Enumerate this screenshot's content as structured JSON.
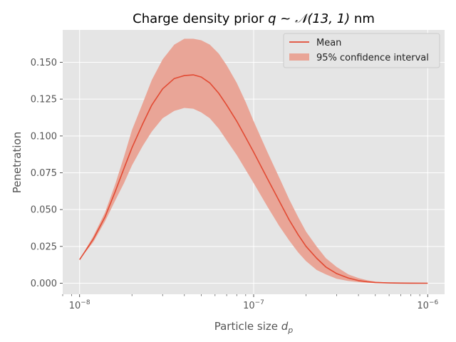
{
  "chart_data": {
    "type": "line",
    "title_prefix": "Charge density prior ",
    "title_math": "q ~ 𝒩(13, 1)",
    "title_suffix": " nm",
    "xlabel_text": "Particle size ",
    "xlabel_var": "d",
    "xlabel_sub": "p",
    "ylabel": "Penetration",
    "xscale": "log",
    "xlim": [
      8e-09,
      1.25e-06
    ],
    "ylim": [
      -0.0075,
      0.172
    ],
    "grid": true,
    "legend_position": "top-right",
    "x_ticks": [
      {
        "value": 1e-08,
        "mantissa": "10",
        "exp": "−8"
      },
      {
        "value": 1e-07,
        "mantissa": "10",
        "exp": "−7"
      },
      {
        "value": 1e-06,
        "mantissa": "10",
        "exp": "−6"
      }
    ],
    "y_ticks": [
      {
        "value": 0.0,
        "label": "0.000"
      },
      {
        "value": 0.025,
        "label": "0.025"
      },
      {
        "value": 0.05,
        "label": "0.050"
      },
      {
        "value": 0.075,
        "label": "0.075"
      },
      {
        "value": 0.1,
        "label": "0.100"
      },
      {
        "value": 0.125,
        "label": "0.125"
      },
      {
        "value": 0.15,
        "label": "0.150"
      }
    ],
    "x": [
      1e-08,
      1.2e-08,
      1.4e-08,
      1.6e-08,
      1.8e-08,
      2e-08,
      2.3e-08,
      2.6e-08,
      3e-08,
      3.5e-08,
      4e-08,
      4.5e-08,
      5e-08,
      5.6e-08,
      6.3e-08,
      7e-08,
      8e-08,
      9e-08,
      1e-07,
      1.2e-07,
      1.4e-07,
      1.6e-07,
      1.8e-07,
      2e-07,
      2.3e-07,
      2.6e-07,
      3e-07,
      3.5e-07,
      4e-07,
      4.5e-07,
      5e-07,
      6e-07,
      7e-07,
      8e-07,
      1e-06
    ],
    "series": [
      {
        "name": "Mean",
        "color": "#e24a33",
        "values": [
          0.016,
          0.03,
          0.045,
          0.062,
          0.078,
          0.092,
          0.108,
          0.121,
          0.132,
          0.139,
          0.141,
          0.1415,
          0.14,
          0.136,
          0.129,
          0.121,
          0.11,
          0.099,
          0.089,
          0.071,
          0.056,
          0.043,
          0.033,
          0.025,
          0.017,
          0.011,
          0.0065,
          0.0035,
          0.0018,
          0.001,
          0.0005,
          0.0002,
          0.0001,
          3e-05,
          0.0
        ]
      },
      {
        "name": "95% confidence interval",
        "color": "#e24a33",
        "lower": [
          0.016,
          0.028,
          0.042,
          0.056,
          0.068,
          0.08,
          0.093,
          0.103,
          0.112,
          0.117,
          0.119,
          0.1185,
          0.116,
          0.112,
          0.105,
          0.097,
          0.087,
          0.077,
          0.068,
          0.052,
          0.039,
          0.029,
          0.021,
          0.015,
          0.009,
          0.006,
          0.003,
          0.0015,
          0.0007,
          0.0003,
          0.00015,
          5e-05,
          2e-05,
          0.0,
          0.0
        ],
        "upper": [
          0.016,
          0.032,
          0.048,
          0.067,
          0.086,
          0.104,
          0.122,
          0.138,
          0.152,
          0.162,
          0.166,
          0.166,
          0.165,
          0.162,
          0.156,
          0.148,
          0.136,
          0.123,
          0.11,
          0.089,
          0.072,
          0.057,
          0.045,
          0.035,
          0.025,
          0.017,
          0.011,
          0.006,
          0.0035,
          0.002,
          0.0011,
          0.0004,
          0.00015,
          5e-05,
          0.0
        ]
      }
    ]
  },
  "style": {
    "plot_bg": "#e5e5e5",
    "grid_color": "#ffffff",
    "band_color": "#e9a597",
    "line_color": "#e24a33"
  }
}
